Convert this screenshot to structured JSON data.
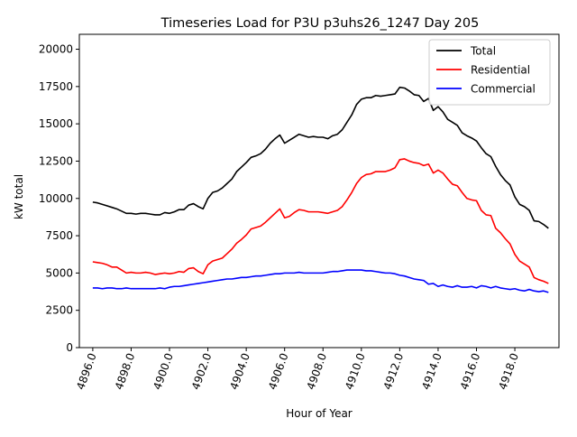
{
  "chart_data": {
    "type": "line",
    "title": "Timeseries Load for P3U p3uhs26_1247  Day 205",
    "xlabel": "Hour of Year",
    "ylabel": "kW total",
    "xlim": [
      4895.3,
      4920.3
    ],
    "ylim": [
      0,
      21000
    ],
    "xticks": [
      4896,
      4898,
      4900,
      4902,
      4904,
      4906,
      4908,
      4910,
      4912,
      4914,
      4916,
      4918
    ],
    "xtick_labels": [
      "4896.0",
      "4898.0",
      "4900.0",
      "4902.0",
      "4904.0",
      "4906.0",
      "4908.0",
      "4910.0",
      "4912.0",
      "4914.0",
      "4916.0",
      "4918.0"
    ],
    "yticks": [
      0,
      2500,
      5000,
      7500,
      10000,
      12500,
      15000,
      17500,
      20000
    ],
    "ytick_labels": [
      "0",
      "2500",
      "5000",
      "7500",
      "10000",
      "12500",
      "15000",
      "17500",
      "20000"
    ],
    "grid": false,
    "legend_position": "top-right",
    "x": [
      4896.0,
      4896.25,
      4896.5,
      4896.75,
      4897.0,
      4897.25,
      4897.5,
      4897.75,
      4898.0,
      4898.25,
      4898.5,
      4898.75,
      4899.0,
      4899.25,
      4899.5,
      4899.75,
      4900.0,
      4900.25,
      4900.5,
      4900.75,
      4901.0,
      4901.25,
      4901.5,
      4901.75,
      4902.0,
      4902.25,
      4902.5,
      4902.75,
      4903.0,
      4903.25,
      4903.5,
      4903.75,
      4904.0,
      4904.25,
      4904.5,
      4904.75,
      4905.0,
      4905.25,
      4905.5,
      4905.75,
      4906.0,
      4906.25,
      4906.5,
      4906.75,
      4907.0,
      4907.25,
      4907.5,
      4907.75,
      4908.0,
      4908.25,
      4908.5,
      4908.75,
      4909.0,
      4909.25,
      4909.5,
      4909.75,
      4910.0,
      4910.25,
      4910.5,
      4910.75,
      4911.0,
      4911.25,
      4911.5,
      4911.75,
      4912.0,
      4912.25,
      4912.5,
      4912.75,
      4913.0,
      4913.25,
      4913.5,
      4913.75,
      4914.0,
      4914.25,
      4914.5,
      4914.75,
      4915.0,
      4915.25,
      4915.5,
      4915.75,
      4916.0,
      4916.25,
      4916.5,
      4916.75,
      4917.0,
      4917.25,
      4917.5,
      4917.75,
      4918.0,
      4918.25,
      4918.5,
      4918.75,
      4919.0,
      4919.25,
      4919.5,
      4919.75
    ],
    "series": [
      {
        "name": "Total",
        "color": "#000000",
        "values": [
          9750,
          9700,
          9600,
          9500,
          9400,
          9300,
          9150,
          9000,
          9000,
          8950,
          9000,
          9000,
          8950,
          8900,
          8900,
          9050,
          9000,
          9100,
          9250,
          9250,
          9550,
          9650,
          9450,
          9300,
          10000,
          10400,
          10500,
          10700,
          11000,
          11300,
          11800,
          12100,
          12400,
          12750,
          12850,
          13000,
          13300,
          13700,
          14000,
          14250,
          13700,
          13900,
          14100,
          14300,
          14200,
          14100,
          14150,
          14100,
          14100,
          14000,
          14200,
          14300,
          14600,
          15100,
          15600,
          16300,
          16650,
          16750,
          16750,
          16900,
          16850,
          16900,
          16950,
          17000,
          17450,
          17400,
          17200,
          16950,
          16900,
          16500,
          16700,
          15900,
          16150,
          15800,
          15300,
          15100,
          14900,
          14400,
          14200,
          14050,
          13850,
          13400,
          13000,
          12800,
          12150,
          11600,
          11200,
          10900,
          10100,
          9600,
          9450,
          9200,
          8500,
          8450,
          8250,
          8000
        ]
      },
      {
        "name": "Residential",
        "color": "#ff0000",
        "values": [
          5750,
          5700,
          5650,
          5550,
          5400,
          5400,
          5200,
          5000,
          5050,
          5000,
          5000,
          5050,
          5000,
          4900,
          4950,
          5000,
          4950,
          5000,
          5100,
          5050,
          5300,
          5350,
          5100,
          4950,
          5550,
          5800,
          5900,
          6000,
          6300,
          6600,
          7000,
          7250,
          7550,
          7950,
          8050,
          8150,
          8400,
          8700,
          9000,
          9300,
          8700,
          8800,
          9050,
          9250,
          9200,
          9100,
          9100,
          9100,
          9050,
          9000,
          9100,
          9200,
          9450,
          9900,
          10400,
          11000,
          11400,
          11600,
          11650,
          11800,
          11800,
          11800,
          11900,
          12050,
          12600,
          12650,
          12500,
          12400,
          12350,
          12200,
          12300,
          11700,
          11900,
          11700,
          11300,
          10950,
          10850,
          10400,
          10000,
          9900,
          9850,
          9200,
          8900,
          8850,
          8000,
          7700,
          7300,
          6950,
          6250,
          5800,
          5600,
          5400,
          4700,
          4550,
          4450,
          4300
        ]
      },
      {
        "name": "Commercial",
        "color": "#0000ff",
        "values": [
          4000,
          4000,
          3950,
          4000,
          4000,
          3950,
          3950,
          4000,
          3950,
          3950,
          3950,
          3950,
          3950,
          3950,
          4000,
          3950,
          4050,
          4100,
          4100,
          4150,
          4200,
          4250,
          4300,
          4350,
          4400,
          4450,
          4500,
          4550,
          4600,
          4600,
          4650,
          4700,
          4700,
          4750,
          4800,
          4800,
          4850,
          4900,
          4950,
          4950,
          5000,
          5000,
          5000,
          5050,
          5000,
          5000,
          5000,
          5000,
          5000,
          5050,
          5100,
          5100,
          5150,
          5200,
          5200,
          5200,
          5200,
          5150,
          5150,
          5100,
          5050,
          5000,
          5000,
          4950,
          4850,
          4800,
          4700,
          4600,
          4550,
          4500,
          4250,
          4300,
          4100,
          4200,
          4100,
          4050,
          4150,
          4050,
          4050,
          4100,
          4000,
          4150,
          4100,
          4000,
          4100,
          4000,
          3950,
          3900,
          3950,
          3850,
          3800,
          3900,
          3800,
          3750,
          3800,
          3700
        ]
      }
    ]
  }
}
